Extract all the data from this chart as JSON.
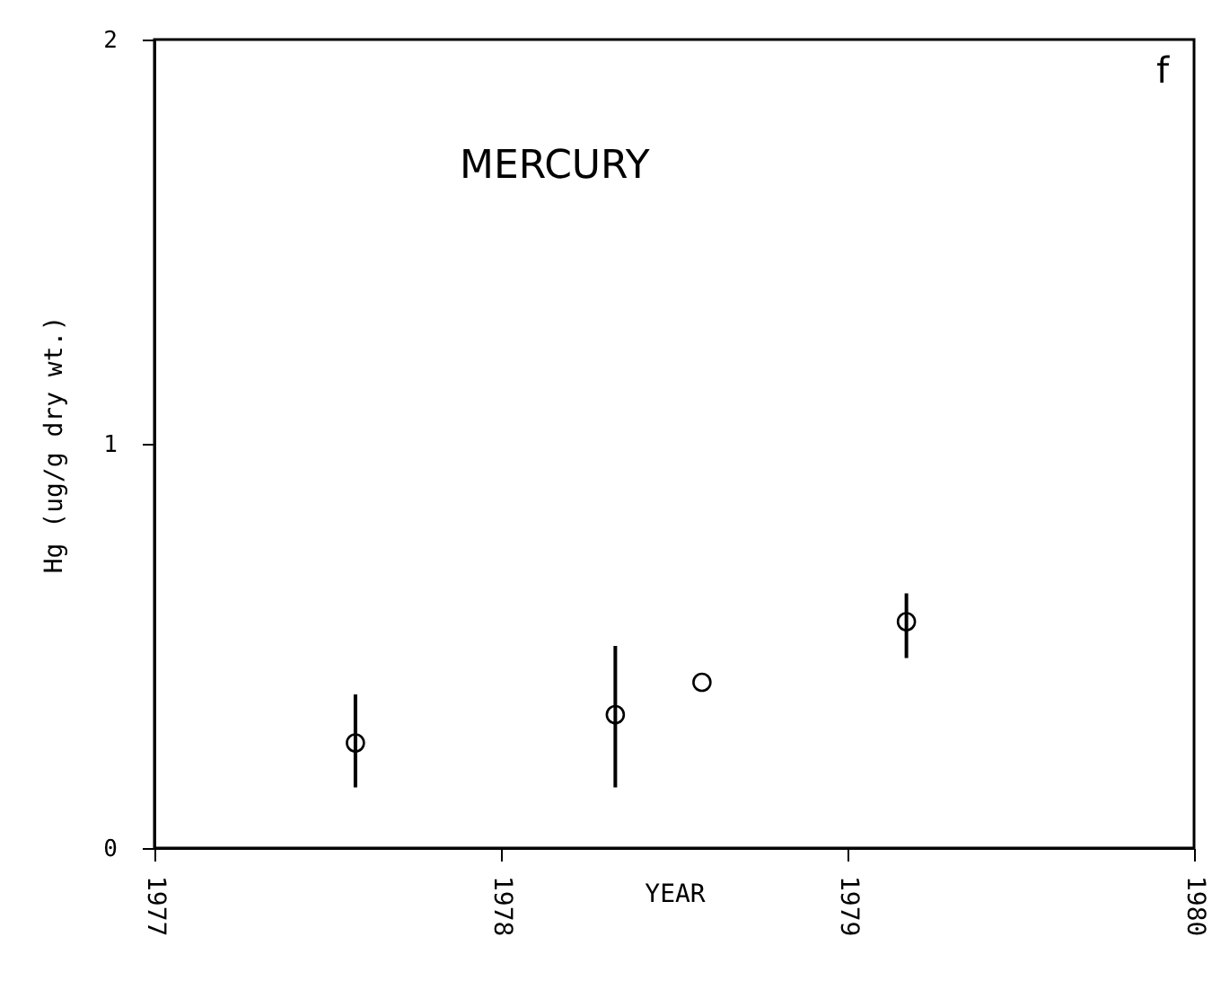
{
  "chart_data": {
    "type": "scatter",
    "xlabel": "YEAR",
    "ylabel": "Hg (ug/g dry wt.)",
    "annotations": [
      "MERCURY",
      "f"
    ],
    "x": [
      1977.58,
      1978.33,
      1978.58,
      1979.17
    ],
    "values": [
      0.26,
      0.33,
      0.41,
      0.56
    ],
    "errors": [
      [
        0.15,
        0.38
      ],
      [
        0.15,
        0.5
      ],
      null,
      [
        0.47,
        0.63
      ]
    ],
    "color": "#000000",
    "marker": "circle",
    "xlim": [
      1977,
      1980
    ],
    "xticks": [
      1977,
      1978,
      1979,
      1980
    ],
    "ylim": [
      0,
      2
    ],
    "yticks": [
      0,
      1,
      2
    ],
    "grid": false
  }
}
